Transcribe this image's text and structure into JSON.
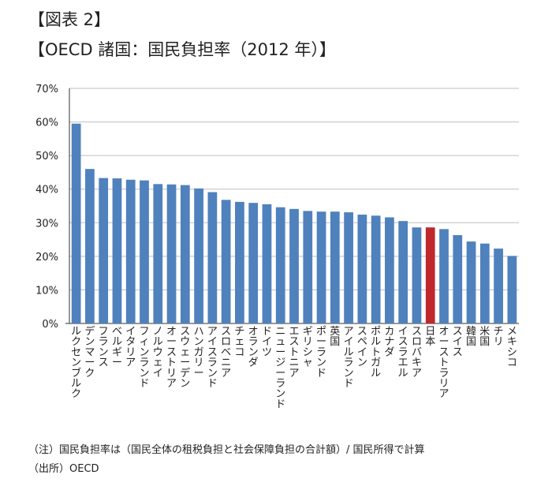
{
  "figure_label": "【図表 2】",
  "figure_title": "【OECD 諸国：国民負担率（2012 年）】",
  "note": "（注）国民負担率は（国民全体の租税負担と社会保障負担の合計額）/ 国民所得で計算",
  "source": "（出所）OECD",
  "colors": {
    "bar": "#4f81bd",
    "highlight": "#c0282d",
    "grid": "#bfbfbf",
    "axis": "#333333"
  },
  "chart_data": {
    "type": "bar",
    "title": "OECD 諸国：国民負担率（2012 年）",
    "xlabel": "",
    "ylabel": "",
    "ylim": [
      0,
      70
    ],
    "yticks": [
      "0%",
      "10%",
      "20%",
      "30%",
      "40%",
      "50%",
      "60%",
      "70%"
    ],
    "grid": true,
    "legend": "none",
    "highlight_category": "日本",
    "categories": [
      "ルクセンブルク",
      "デンマーク",
      "フランス",
      "ベルギー",
      "イタリア",
      "フィンランド",
      "ノルウェイ",
      "オーストリア",
      "スウェーデン",
      "ハンガリー",
      "アイスランド",
      "スロベニア",
      "チェコ",
      "オランダ",
      "ドイツ",
      "ニュージーランド",
      "エストニア",
      "ギリシャ",
      "ポーランド",
      "英国",
      "アイルランド",
      "スペイン",
      "ポルトガル",
      "カナダ",
      "イスラエル",
      "スロバキア",
      "日本",
      "オーストラリア",
      "スイス",
      "韓国",
      "米国",
      "チリ",
      "メキシコ"
    ],
    "values": [
      59.5,
      46,
      43.3,
      43.2,
      42.8,
      42.6,
      41.5,
      41.4,
      41.2,
      40.2,
      39.1,
      36.8,
      36.2,
      35.9,
      35.5,
      34.6,
      34.1,
      33.5,
      33.3,
      33.3,
      33.1,
      32.4,
      32.1,
      31.6,
      30.5,
      28.6,
      28.6,
      28.1,
      26.3,
      24.4,
      23.8,
      22.3,
      20.1
    ]
  }
}
